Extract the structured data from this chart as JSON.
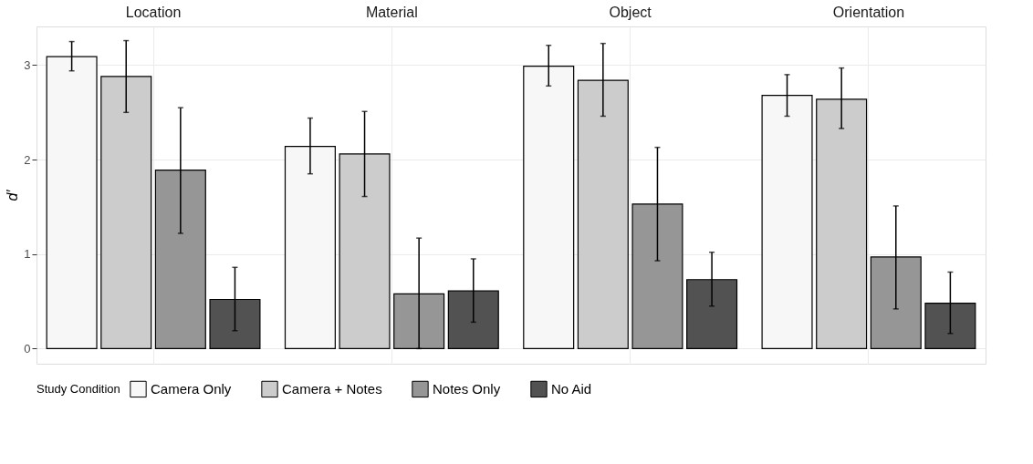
{
  "chart_data": {
    "type": "bar",
    "ylabel": "d′",
    "categories": [
      "Location",
      "Material",
      "Object",
      "Orientation"
    ],
    "ylim": [
      -0.16,
      3.41
    ],
    "yticks": [
      0,
      1,
      2,
      3
    ],
    "grid": true,
    "legend": "bottom",
    "legend_title": "Study Condition",
    "series": [
      {
        "name": "Camera Only",
        "color": "#f7f7f7",
        "values": [
          3.09,
          2.14,
          2.99,
          2.68
        ],
        "errors": [
          [
            2.94,
            3.25
          ],
          [
            1.85,
            2.44
          ],
          [
            2.78,
            3.21
          ],
          [
            2.46,
            2.9
          ]
        ]
      },
      {
        "name": "Camera + Notes",
        "color": "#cccccc",
        "values": [
          2.88,
          2.06,
          2.84,
          2.64
        ],
        "errors": [
          [
            2.5,
            3.26
          ],
          [
            1.61,
            2.51
          ],
          [
            2.46,
            3.23
          ],
          [
            2.33,
            2.97
          ]
        ]
      },
      {
        "name": "Notes Only",
        "color": "#969696",
        "values": [
          1.89,
          0.58,
          1.53,
          0.97
        ],
        "errors": [
          [
            1.22,
            2.55
          ],
          [
            0.0,
            1.17
          ],
          [
            0.93,
            2.13
          ],
          [
            0.42,
            1.51
          ]
        ]
      },
      {
        "name": "No Aid",
        "color": "#525252",
        "values": [
          0.52,
          0.61,
          0.73,
          0.48
        ],
        "errors": [
          [
            0.19,
            0.86
          ],
          [
            0.28,
            0.95
          ],
          [
            0.45,
            1.02
          ],
          [
            0.16,
            0.81
          ]
        ]
      }
    ]
  }
}
